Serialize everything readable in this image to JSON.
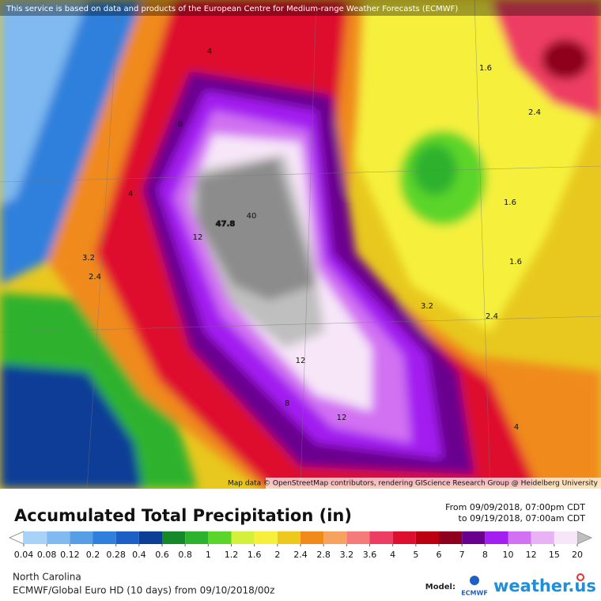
{
  "header": {
    "notice": "This service is based on data and products of the European Centre for Medium-range Weather Forecasts (ECMWF)",
    "attribution": "Map data © OpenStreetMap contributors, rendering GIScience Research Group @ Heidelberg University"
  },
  "map_labels": [
    "47.8",
    "40",
    "12",
    "12",
    "12",
    "8",
    "8",
    "4",
    "4",
    "4",
    "3.2",
    "3.2",
    "2.4",
    "2.4",
    "2.4",
    "1.6",
    "1.6",
    "1.6"
  ],
  "legend": {
    "title": "Accumulated Total Precipitation (in)",
    "valid_from": "From 09/09/2018, 07:00pm CDT",
    "valid_to": "to 09/19/2018, 07:00am CDT",
    "ticks": [
      0.04,
      0.08,
      0.12,
      0.2,
      0.28,
      0.4,
      0.6,
      0.8,
      1,
      1.2,
      1.6,
      2,
      2.4,
      2.8,
      3.2,
      3.6,
      4,
      5,
      6,
      7,
      8,
      10,
      12,
      15,
      20
    ],
    "colors": [
      "#a8d2f7",
      "#80baf0",
      "#569fe6",
      "#2f80dc",
      "#1c60c6",
      "#0c3e96",
      "#15882a",
      "#2db22e",
      "#5cd52a",
      "#d4f03a",
      "#f6f03c",
      "#efc81e",
      "#f08a1a",
      "#f7a25e",
      "#f57a7a",
      "#ee3d62",
      "#de0f2e",
      "#bb0012",
      "#8e001e",
      "#6a008e",
      "#a31ef0",
      "#d271f2",
      "#e9b2f5",
      "#f7e6f8"
    ],
    "under_color": "#ffffff",
    "over_color": "#bfbfbf"
  },
  "footer": {
    "region": "North Carolina",
    "model_run": "ECMWF/Global Euro HD (10 days) from 09/10/2018/00z",
    "model_label": "Model:",
    "model_logo": "ECMWF",
    "brand": "weather.us"
  }
}
